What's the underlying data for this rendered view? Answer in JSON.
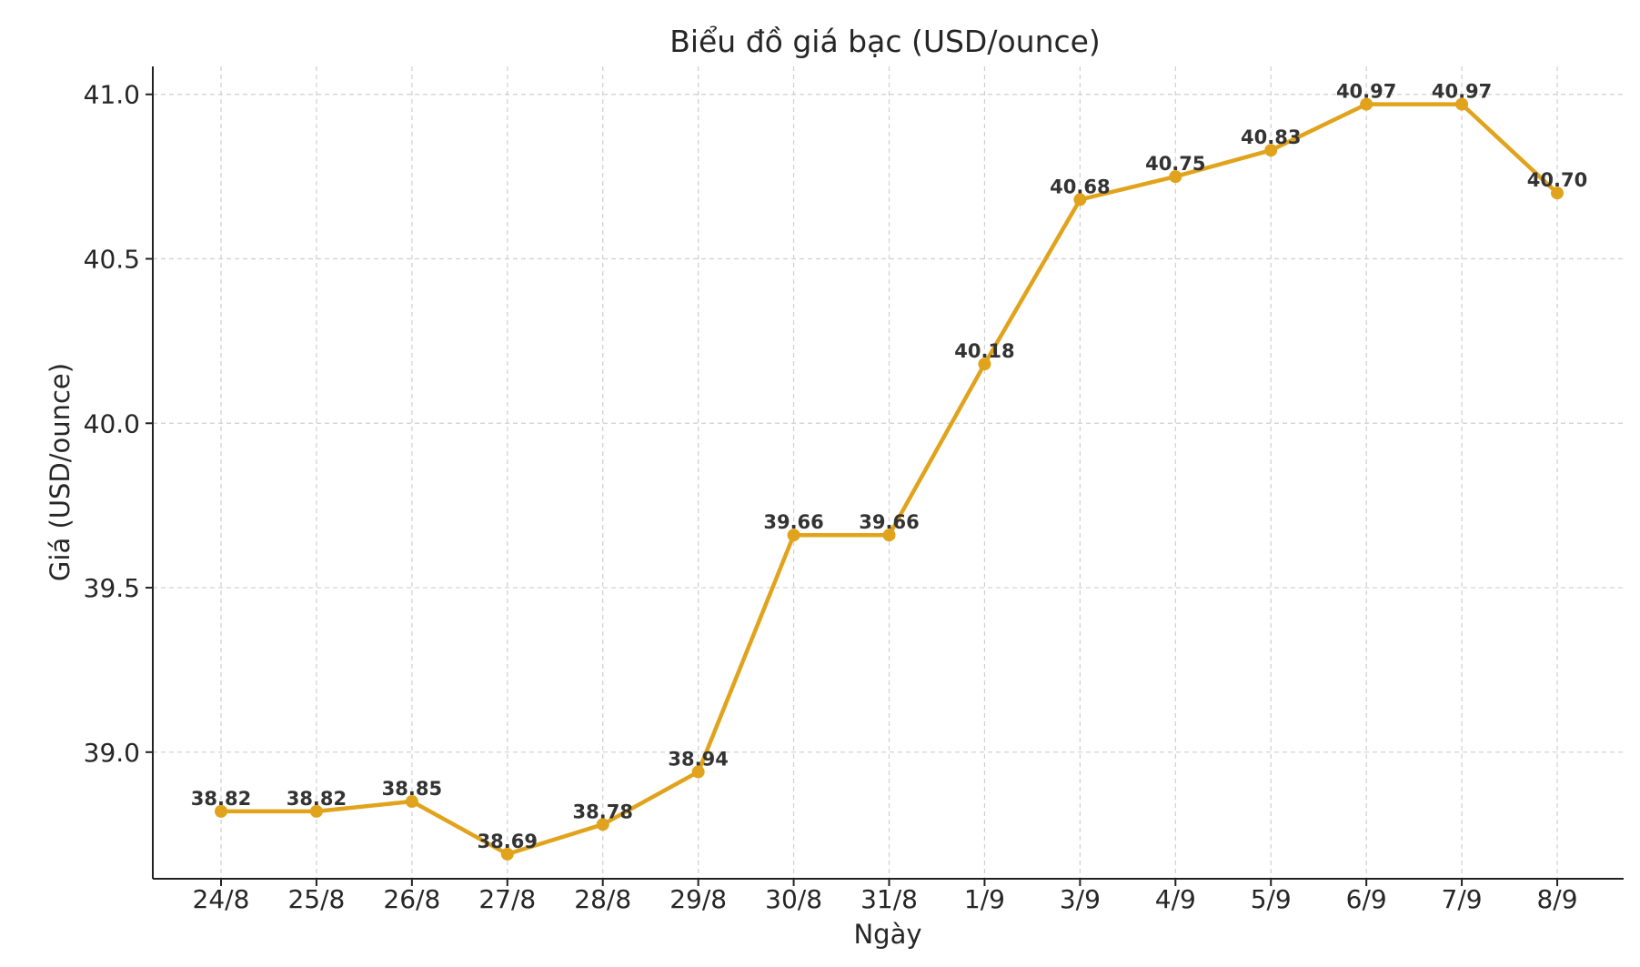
{
  "chart_data": {
    "type": "line",
    "title": "Biểu đồ giá bạc (USD/ounce)",
    "xlabel": "Ngày",
    "ylabel": "Giá (USD/ounce)",
    "categories": [
      "24/8",
      "25/8",
      "26/8",
      "27/8",
      "28/8",
      "29/8",
      "30/8",
      "31/8",
      "1/9",
      "3/9",
      "4/9",
      "5/9",
      "6/9",
      "7/9",
      "8/9"
    ],
    "series": [
      {
        "values": [
          38.82,
          38.82,
          38.85,
          38.69,
          38.78,
          38.94,
          39.66,
          39.66,
          40.18,
          40.68,
          40.75,
          40.83,
          40.97,
          40.97,
          40.7
        ],
        "labels": [
          "38.82",
          "38.82",
          "38.85",
          "38.69",
          "38.78",
          "38.94",
          "39.66",
          "39.66",
          "40.18",
          "40.68",
          "40.75",
          "40.83",
          "40.97",
          "40.97",
          "40.70"
        ],
        "color": "#E0A31B"
      }
    ],
    "ylim": [
      38.615,
      41.085
    ],
    "yticks": [
      39.0,
      39.5,
      40.0,
      40.5,
      41.0
    ],
    "ytick_labels": [
      "39.0",
      "39.5",
      "40.0",
      "40.5",
      "41.0"
    ],
    "grid": true,
    "grid_style": "dashed",
    "markers": true
  }
}
